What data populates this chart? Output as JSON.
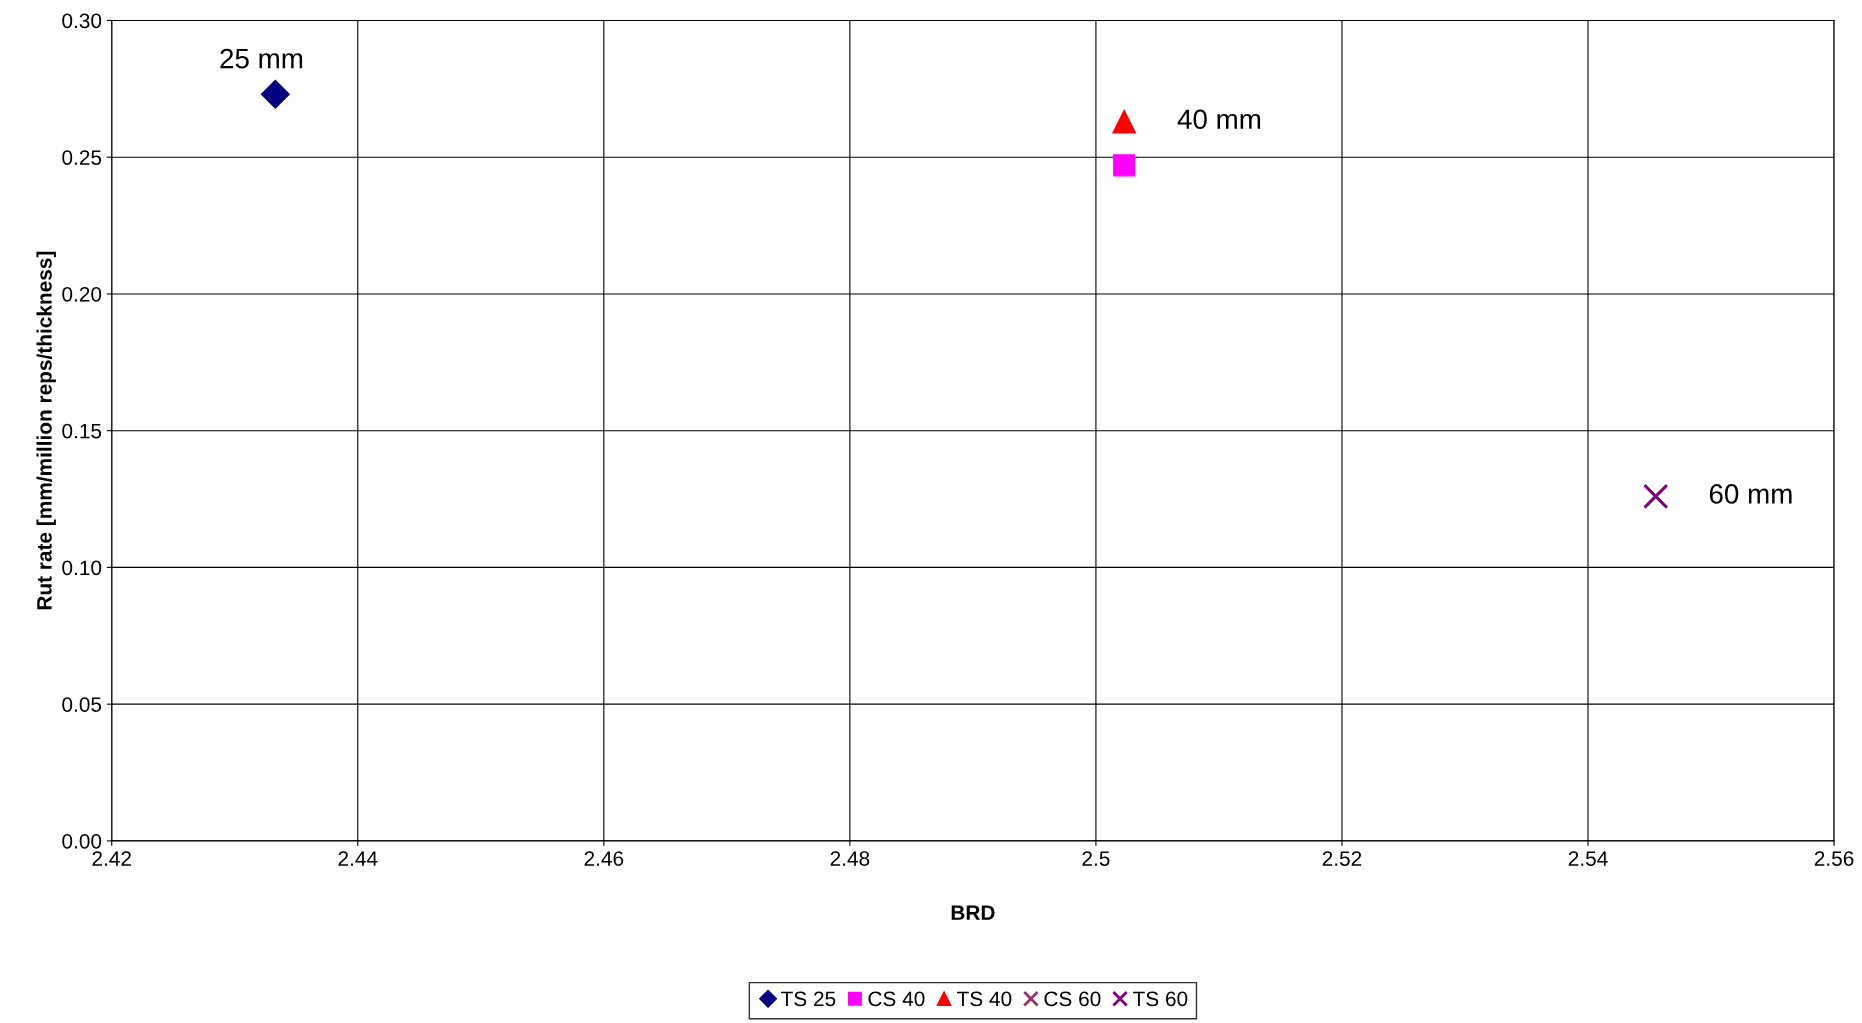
{
  "chart_data": {
    "type": "scatter",
    "xlabel": "BRD",
    "ylabel": "Rut rate [mm/million reps/thickness]",
    "xlim": [
      2.42,
      2.56
    ],
    "xticks": [
      2.42,
      2.44,
      2.46,
      2.48,
      {
        "value": 2.5,
        "label": "2.5"
      },
      2.52,
      2.54,
      2.56
    ],
    "ylim": [
      0,
      0.3
    ],
    "yticks": [
      {
        "value": 0,
        "label": "0.00"
      },
      {
        "value": 0.05,
        "label": "0.05"
      },
      {
        "value": 0.1,
        "label": "0.10"
      },
      {
        "value": 0.15,
        "label": "0.15"
      },
      {
        "value": 0.2,
        "label": "0.20"
      },
      {
        "value": 0.25,
        "label": "0.25"
      },
      {
        "value": 0.3,
        "label": "0.30"
      }
    ],
    "grid": true,
    "legend": "bottom",
    "series": [
      {
        "name": "TS 25",
        "color": "#000080",
        "marker": "diamond",
        "x": [
          2.4333
        ],
        "values": [
          0.273
        ]
      },
      {
        "name": "CS 40",
        "color": "#ff00ff",
        "marker": "square",
        "x": [
          2.5023
        ],
        "values": [
          0.247
        ]
      },
      {
        "name": "TS 40",
        "color": "#ff0000",
        "marker": "triangle",
        "x": [
          2.5023
        ],
        "values": [
          0.263
        ]
      },
      {
        "name": "CS 60",
        "color": "#993366",
        "marker": "cross",
        "x": [
          2.5455
        ],
        "values": [
          0.126
        ]
      },
      {
        "name": "TS 60",
        "color": "#800080",
        "marker": "cross",
        "x": [
          2.5455
        ],
        "values": [
          0.126
        ]
      }
    ],
    "annotations": [
      {
        "text": "25 mm",
        "x": 2.4333,
        "y": 0.273
      },
      {
        "text": "40 mm",
        "x": 2.5023,
        "y": 0.263
      },
      {
        "text": "60 mm",
        "x": 2.5455,
        "y": 0.126
      }
    ]
  }
}
